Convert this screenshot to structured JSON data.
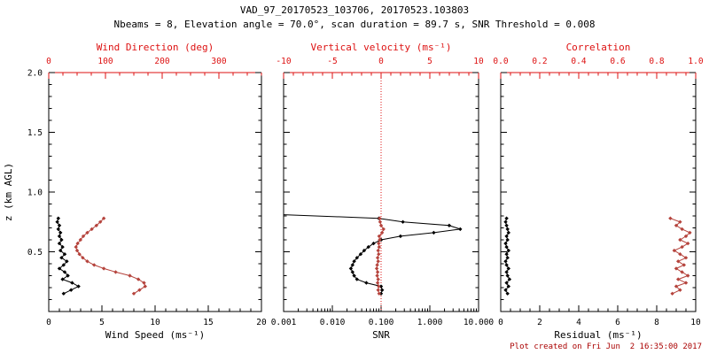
{
  "colors": {
    "black": "#000000",
    "axis_red": "#dd1111",
    "series_red": "#b5433c",
    "footer_red": "#aa0000"
  },
  "chart_data": {
    "type": "line",
    "title": "VAD_97_20170523_103706, 20170523.103803",
    "subtitle": "Nbeams = 8, Elevation angle = 70.0°, scan duration = 89.7 s, SNR Threshold = 0.008",
    "footer": "Plot created on Fri Jun  2 16:35:00 2017",
    "ylabel": "z (km AGL)",
    "ylim": [
      0,
      2.0
    ],
    "yticks": [
      0.5,
      1.0,
      1.5,
      2.0
    ],
    "y_minor_step": 0.1,
    "z_levels": [
      0.15,
      0.18,
      0.21,
      0.24,
      0.27,
      0.3,
      0.33,
      0.36,
      0.39,
      0.42,
      0.45,
      0.48,
      0.51,
      0.54,
      0.57,
      0.6,
      0.63,
      0.66,
      0.69,
      0.72,
      0.75,
      0.78
    ],
    "panels": [
      {
        "id": "wind",
        "bottom_axis": {
          "label": "Wind Speed (ms⁻¹)",
          "range": [
            0,
            20
          ],
          "ticks": [
            0,
            5,
            10,
            15,
            20
          ],
          "minor_step": 1
        },
        "top_axis": {
          "label": "Wind Direction (deg)",
          "range": [
            0,
            375
          ],
          "ticks": [
            0,
            100,
            200,
            300
          ],
          "minor_step": 25
        },
        "series": [
          {
            "name": "wind-speed",
            "axis": "bottom",
            "color": "black",
            "values": [
              1.4,
              2.1,
              2.8,
              2.2,
              1.3,
              1.8,
              1.5,
              1.0,
              1.4,
              1.7,
              1.2,
              1.5,
              1.1,
              1.3,
              1.0,
              1.2,
              1.0,
              1.1,
              0.9,
              1.0,
              0.8,
              0.9
            ]
          },
          {
            "name": "wind-direction",
            "axis": "top",
            "color": "red",
            "values": [
              150,
              160,
              170,
              168,
              158,
              143,
              118,
              97,
              80,
              68,
              60,
              54,
              50,
              48,
              51,
              56,
              61,
              68,
              76,
              84,
              91,
              97
            ]
          }
        ]
      },
      {
        "id": "snr-velocity",
        "bottom_axis": {
          "label": "SNR",
          "scale": "log",
          "range": [
            0.001,
            10
          ],
          "ticks": [
            0.001,
            0.01,
            0.1,
            1,
            10
          ],
          "tick_labels": [
            "0.001",
            "0.010",
            "0.100",
            "1.000",
            "10.000"
          ]
        },
        "top_axis": {
          "label": "Vertical velocity (ms⁻¹)",
          "range": [
            -10,
            10
          ],
          "ticks": [
            -10,
            -5,
            0,
            5,
            10
          ],
          "minor_step": 1
        },
        "ref_line": {
          "axis": "top",
          "value": 0,
          "style": "dotted",
          "color": "red"
        },
        "series": [
          {
            "name": "snr",
            "axis": "bottom",
            "color": "black",
            "z": [
              0.15,
              0.18,
              0.21,
              0.24,
              0.27,
              0.3,
              0.33,
              0.36,
              0.39,
              0.42,
              0.45,
              0.48,
              0.51,
              0.54,
              0.57,
              0.6,
              0.63,
              0.66,
              0.69,
              0.72,
              0.75,
              0.78,
              0.81
            ],
            "values": [
              0.1,
              0.105,
              0.1,
              0.05,
              0.032,
              0.028,
              0.026,
              0.024,
              0.026,
              0.028,
              0.032,
              0.038,
              0.045,
              0.055,
              0.07,
              0.1,
              0.25,
              1.2,
              4.2,
              2.5,
              0.28,
              0.09,
              0.001
            ]
          },
          {
            "name": "vertical-velocity",
            "axis": "top",
            "color": "red",
            "values": [
              -0.2,
              -0.3,
              -0.25,
              -0.35,
              -0.3,
              -0.4,
              -0.35,
              -0.45,
              -0.4,
              -0.3,
              -0.35,
              -0.25,
              -0.3,
              -0.2,
              -0.25,
              -0.15,
              -0.2,
              0.1,
              0.25,
              0.0,
              -0.1,
              -0.15
            ]
          }
        ]
      },
      {
        "id": "residual-correlation",
        "bottom_axis": {
          "label": "Residual (ms⁻¹)",
          "range": [
            0,
            10
          ],
          "ticks": [
            0,
            2,
            4,
            6,
            8,
            10
          ],
          "minor_step": 0.5
        },
        "top_axis": {
          "label": "Correlation",
          "range": [
            0,
            1
          ],
          "ticks": [
            0,
            0.2,
            0.4,
            0.6,
            0.8,
            1
          ],
          "tick_labels": [
            "0.0",
            "0.2",
            "0.4",
            "0.6",
            "0.8",
            "1.0"
          ],
          "minor_step": 0.05
        },
        "series": [
          {
            "name": "residual",
            "axis": "bottom",
            "color": "black",
            "values": [
              0.35,
              0.25,
              0.4,
              0.3,
              0.45,
              0.35,
              0.3,
              0.4,
              0.3,
              0.25,
              0.35,
              0.3,
              0.4,
              0.3,
              0.25,
              0.35,
              0.3,
              0.4,
              0.35,
              0.3,
              0.25,
              0.3
            ]
          },
          {
            "name": "correlation",
            "axis": "top",
            "color": "red",
            "values": [
              0.88,
              0.92,
              0.9,
              0.95,
              0.91,
              0.96,
              0.93,
              0.9,
              0.94,
              0.91,
              0.95,
              0.92,
              0.89,
              0.93,
              0.96,
              0.92,
              0.95,
              0.97,
              0.93,
              0.9,
              0.92,
              0.87
            ]
          }
        ]
      }
    ]
  }
}
